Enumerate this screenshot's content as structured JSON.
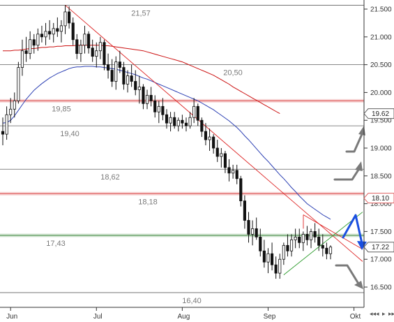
{
  "chart_data": {
    "type": "candlestick",
    "title": "",
    "x_axis": {
      "month_labels": [
        {
          "label": "Jun",
          "index": 2
        },
        {
          "label": "Jul",
          "index": 24
        },
        {
          "label": "Aug",
          "index": 46
        },
        {
          "label": "Sep",
          "index": 68
        },
        {
          "label": "Okt",
          "index": 90
        }
      ]
    },
    "y_axis": {
      "side": "right",
      "ylim": [
        16.15,
        21.65
      ],
      "ticks": [
        "16.500",
        "17.000",
        "17.500",
        "18.000",
        "18.500",
        "19.000",
        "19.500",
        "20.000",
        "20.500",
        "21.000",
        "21.500"
      ],
      "tick_values": [
        16.5,
        17.0,
        17.5,
        18.0,
        18.5,
        19.0,
        19.5,
        20.0,
        20.5,
        21.0,
        21.5
      ]
    },
    "horizontal_levels": [
      {
        "value": 21.57,
        "label": "21,57",
        "color": "#606060",
        "band": false
      },
      {
        "value": 20.5,
        "label": "20,50",
        "color": "#606060",
        "band": false
      },
      {
        "value": 19.85,
        "label": "19,85",
        "color": "#e06060",
        "band": true
      },
      {
        "value": 19.4,
        "label": "19,40",
        "color": "#606060",
        "band": false
      },
      {
        "value": 18.62,
        "label": "18,62",
        "color": "#606060",
        "band": false
      },
      {
        "value": 18.18,
        "label": "18,18",
        "color": "#e06060",
        "band": true
      },
      {
        "value": 17.43,
        "label": "17,43",
        "color": "#5a9a5a",
        "band": true
      },
      {
        "value": 16.4,
        "label": "16,40",
        "color": "#606060",
        "band": false
      }
    ],
    "price_tags": [
      {
        "value": 19.62,
        "label": "19.62",
        "color": "#606060"
      },
      {
        "value": 18.1,
        "label": "18.10",
        "color": "#e06060"
      },
      {
        "value": 17.22,
        "label": "17.22",
        "color": "#606060"
      }
    ],
    "series": [
      {
        "kind": "candles",
        "ohlc": [
          [
            19.3,
            19.55,
            19.05,
            19.25
          ],
          [
            19.25,
            19.75,
            19.15,
            19.6
          ],
          [
            19.6,
            19.9,
            19.45,
            19.7
          ],
          [
            19.7,
            20.0,
            19.55,
            19.85
          ],
          [
            19.85,
            20.55,
            19.8,
            20.45
          ],
          [
            20.45,
            20.95,
            20.3,
            20.75
          ],
          [
            20.75,
            21.0,
            20.55,
            20.7
          ],
          [
            20.7,
            21.1,
            20.6,
            20.95
          ],
          [
            20.95,
            21.05,
            20.7,
            20.85
          ],
          [
            20.85,
            21.15,
            20.75,
            21.05
          ],
          [
            21.05,
            21.2,
            20.9,
            21.0
          ],
          [
            21.0,
            21.25,
            20.85,
            21.1
          ],
          [
            21.1,
            21.3,
            20.95,
            21.05
          ],
          [
            21.05,
            21.25,
            20.9,
            21.15
          ],
          [
            21.15,
            21.35,
            21.0,
            21.1
          ],
          [
            21.1,
            21.3,
            20.9,
            21.2
          ],
          [
            21.2,
            21.57,
            21.05,
            21.45
          ],
          [
            21.45,
            21.55,
            21.15,
            21.25
          ],
          [
            21.25,
            21.35,
            20.85,
            20.95
          ],
          [
            20.95,
            21.05,
            20.6,
            20.7
          ],
          [
            20.7,
            20.95,
            20.55,
            20.85
          ],
          [
            20.85,
            21.2,
            20.7,
            21.05
          ],
          [
            21.05,
            21.1,
            20.7,
            20.8
          ],
          [
            20.8,
            20.95,
            20.55,
            20.65
          ],
          [
            20.65,
            20.9,
            20.45,
            20.75
          ],
          [
            20.75,
            21.0,
            20.6,
            20.9
          ],
          [
            20.9,
            20.95,
            20.4,
            20.5
          ],
          [
            20.5,
            20.7,
            20.25,
            20.4
          ],
          [
            20.4,
            20.6,
            20.1,
            20.2
          ],
          [
            20.2,
            20.65,
            20.05,
            20.55
          ],
          [
            20.55,
            20.75,
            20.35,
            20.45
          ],
          [
            20.45,
            20.55,
            20.05,
            20.15
          ],
          [
            20.15,
            20.4,
            20.0,
            20.3
          ],
          [
            20.3,
            20.5,
            20.1,
            20.2
          ],
          [
            20.2,
            20.4,
            19.95,
            20.05
          ],
          [
            20.05,
            20.3,
            19.8,
            20.1
          ],
          [
            20.1,
            20.15,
            19.7,
            19.8
          ],
          [
            19.8,
            20.05,
            19.7,
            19.95
          ],
          [
            19.95,
            20.1,
            19.75,
            19.85
          ],
          [
            19.85,
            19.95,
            19.55,
            19.65
          ],
          [
            19.65,
            19.85,
            19.45,
            19.75
          ],
          [
            19.75,
            19.9,
            19.5,
            19.6
          ],
          [
            19.6,
            19.7,
            19.35,
            19.45
          ],
          [
            19.45,
            19.65,
            19.3,
            19.55
          ],
          [
            19.55,
            19.65,
            19.35,
            19.4
          ],
          [
            19.4,
            19.55,
            19.3,
            19.5
          ],
          [
            19.5,
            19.6,
            19.35,
            19.45
          ],
          [
            19.45,
            19.55,
            19.3,
            19.4
          ],
          [
            19.4,
            19.65,
            19.35,
            19.55
          ],
          [
            19.55,
            19.9,
            19.45,
            19.75
          ],
          [
            19.75,
            19.8,
            19.4,
            19.5
          ],
          [
            19.5,
            19.55,
            19.2,
            19.3
          ],
          [
            19.3,
            19.45,
            19.05,
            19.15
          ],
          [
            19.15,
            19.35,
            18.95,
            19.2
          ],
          [
            19.2,
            19.25,
            18.9,
            19.0
          ],
          [
            19.0,
            19.15,
            18.75,
            18.85
          ],
          [
            18.85,
            19.0,
            18.65,
            18.9
          ],
          [
            18.9,
            18.95,
            18.55,
            18.65
          ],
          [
            18.65,
            18.8,
            18.4,
            18.55
          ],
          [
            18.55,
            18.7,
            18.45,
            18.6
          ],
          [
            18.6,
            18.7,
            18.35,
            18.45
          ],
          [
            18.45,
            18.5,
            17.95,
            18.05
          ],
          [
            18.05,
            18.15,
            17.55,
            17.7
          ],
          [
            17.7,
            17.85,
            17.3,
            17.45
          ],
          [
            17.45,
            17.7,
            17.25,
            17.55
          ],
          [
            17.55,
            17.75,
            17.35,
            17.4
          ],
          [
            17.4,
            17.55,
            17.05,
            17.15
          ],
          [
            17.15,
            17.35,
            16.85,
            16.95
          ],
          [
            16.95,
            17.2,
            16.75,
            17.1
          ],
          [
            17.1,
            17.3,
            16.8,
            16.9
          ],
          [
            16.9,
            17.05,
            16.65,
            16.75
          ],
          [
            16.75,
            17.1,
            16.65,
            17.0
          ],
          [
            17.0,
            17.3,
            16.9,
            17.25
          ],
          [
            17.25,
            17.45,
            17.05,
            17.15
          ],
          [
            17.15,
            17.45,
            17.05,
            17.35
          ],
          [
            17.35,
            17.55,
            17.2,
            17.4
          ],
          [
            17.4,
            17.55,
            17.2,
            17.3
          ],
          [
            17.3,
            17.5,
            17.15,
            17.45
          ],
          [
            17.45,
            17.6,
            17.25,
            17.35
          ],
          [
            17.35,
            17.55,
            17.2,
            17.5
          ],
          [
            17.5,
            17.65,
            17.3,
            17.4
          ],
          [
            17.4,
            17.55,
            17.15,
            17.25
          ],
          [
            17.25,
            17.45,
            17.05,
            17.2
          ],
          [
            17.2,
            17.3,
            17.0,
            17.1
          ],
          [
            17.1,
            17.25,
            17.0,
            17.22
          ]
        ]
      },
      {
        "kind": "line",
        "color": "#2b3fb3",
        "values": [
          19.45,
          19.46,
          19.5,
          19.58,
          19.68,
          19.78,
          19.88,
          19.96,
          20.04,
          20.1,
          20.16,
          20.21,
          20.26,
          20.3,
          20.34,
          20.37,
          20.4,
          20.43,
          20.45,
          20.46,
          20.46,
          20.47,
          20.47,
          20.47,
          20.46,
          20.46,
          20.45,
          20.44,
          20.43,
          20.42,
          20.4,
          20.38,
          20.36,
          20.34,
          20.32,
          20.29,
          20.26,
          20.24,
          20.21,
          20.18,
          20.15,
          20.12,
          20.09,
          20.06,
          20.03,
          20.0,
          19.97,
          19.94,
          19.91,
          19.88,
          19.85,
          19.81,
          19.77,
          19.73,
          19.69,
          19.64,
          19.59,
          19.54,
          19.49,
          19.43,
          19.37,
          19.3,
          19.22,
          19.15,
          19.07,
          18.99,
          18.91,
          18.83,
          18.76,
          18.68,
          18.6,
          18.52,
          18.45,
          18.37,
          18.29,
          18.22,
          18.14,
          18.07,
          18.0,
          17.95,
          17.9,
          17.85,
          17.8,
          17.76,
          17.72
        ]
      },
      {
        "kind": "line",
        "color": "#cc1111",
        "values": [
          20.75,
          20.75,
          20.75,
          20.76,
          20.76,
          20.77,
          20.78,
          20.79,
          20.79,
          20.8,
          20.81,
          20.81,
          20.82,
          20.82,
          20.83,
          20.83,
          20.84,
          20.84,
          20.84,
          20.85,
          20.85,
          20.85,
          20.85,
          20.85,
          20.85,
          20.85,
          20.84,
          20.84,
          20.83,
          20.82,
          20.81,
          20.8,
          20.79,
          20.78,
          20.77,
          20.76,
          20.75,
          20.73,
          20.71,
          20.69,
          20.67,
          20.65,
          20.63,
          20.61,
          20.59,
          20.57,
          20.55,
          20.52,
          20.49,
          20.46,
          20.43,
          20.4,
          20.37,
          20.34,
          20.31,
          20.27,
          20.23,
          20.19,
          20.15,
          20.1,
          20.06,
          20.02,
          19.98,
          19.94,
          19.9,
          19.86,
          19.82,
          19.78,
          19.74,
          19.7,
          19.66,
          19.62
        ]
      }
    ]
  },
  "nav": {
    "buttons": [
      "◂◂",
      "◂",
      "▸",
      "▸▸"
    ]
  }
}
